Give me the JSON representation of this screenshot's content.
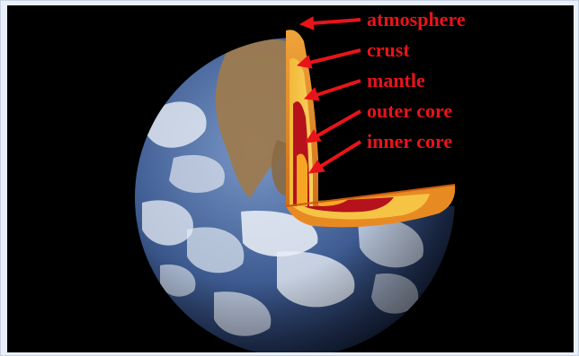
{
  "diagram": {
    "labels": [
      {
        "key": "atmosphere",
        "text": "atmosphere"
      },
      {
        "key": "crust",
        "text": "crust"
      },
      {
        "key": "mantle",
        "text": "mantle"
      },
      {
        "key": "outer_core",
        "text": "outer core"
      },
      {
        "key": "inner_core",
        "text": "inner core"
      }
    ]
  },
  "colors": {
    "background": "#000000",
    "label_red": "#e8141a",
    "ocean_blue": "#3e5c92",
    "cloud_white": "#e9eef5",
    "land_brown": "#9c7a4f",
    "crust_orange": "#e88a22",
    "mantle_yellow": "#f6c444",
    "outer_core_red": "#b5121b",
    "inner_core_amber": "#f7a623"
  }
}
